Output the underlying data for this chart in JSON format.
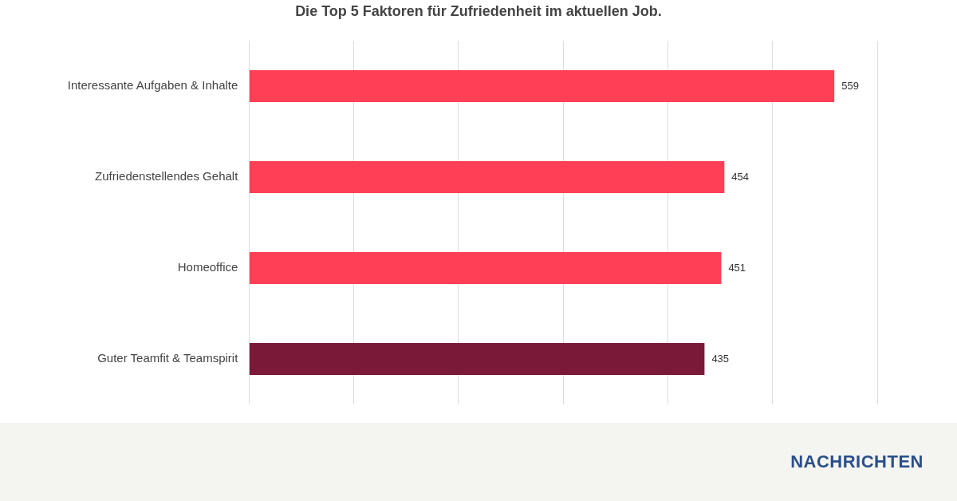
{
  "chart_data": {
    "type": "bar",
    "orientation": "horizontal",
    "title": "Die Top 5 Faktoren für Zufriedenheit im aktuellen Job.",
    "categories": [
      "Interessante Aufgaben & Inhalte",
      "Zufriedenstellendes Gehalt",
      "Homeoffice",
      "Guter Teamfit & Teamspirit"
    ],
    "values": [
      559,
      454,
      451,
      435
    ],
    "colors": [
      "#ff3f55",
      "#ff3f55",
      "#ff3f55",
      "#7a1a38"
    ],
    "xlim": [
      0,
      600
    ],
    "xticks": [
      {
        "value": 0,
        "label": null
      },
      {
        "value": 100,
        "label": null
      },
      {
        "value": 200,
        "label": null
      },
      {
        "value": 300,
        "label": null
      },
      {
        "value": 400,
        "label": null
      },
      {
        "value": 500,
        "label": null
      },
      {
        "value": 600,
        "label": null
      }
    ],
    "grid": "x",
    "data_labels": true,
    "legend": false,
    "annotations": [
      "NACHRICHTEN"
    ]
  }
}
